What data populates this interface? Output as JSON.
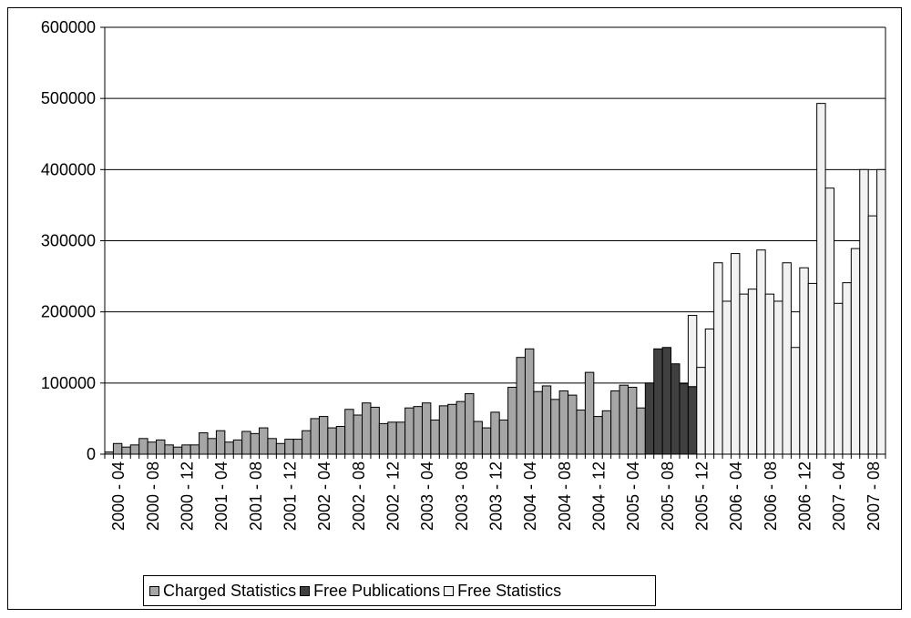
{
  "chart_data": {
    "type": "bar",
    "ylim": [
      0,
      600000
    ],
    "yticks": [
      0,
      100000,
      200000,
      300000,
      400000,
      500000,
      600000
    ],
    "grid": true,
    "legend_position": "bottom",
    "x_tick_labels": [
      "2000 - 04",
      "2000 - 08",
      "2000 - 12",
      "2001 - 04",
      "2001 - 08",
      "2001 - 12",
      "2002 - 04",
      "2002 - 08",
      "2002 - 12",
      "2003 - 04",
      "2003 - 08",
      "2003 - 12",
      "2004 - 04",
      "2004 - 08",
      "2004 - 12",
      "2005 - 04",
      "2005 - 08",
      "2005 - 12",
      "2006 - 04",
      "2006 - 08",
      "2006 - 12",
      "2007 - 04",
      "2007 - 08"
    ],
    "categories": [
      "2000-03",
      "2000-04",
      "2000-05",
      "2000-06",
      "2000-07",
      "2000-08",
      "2000-09",
      "2000-10",
      "2000-11",
      "2000-12",
      "2001-01",
      "2001-02",
      "2001-03",
      "2001-04",
      "2001-05",
      "2001-06",
      "2001-07",
      "2001-08",
      "2001-09",
      "2001-10",
      "2001-11",
      "2001-12",
      "2002-01",
      "2002-02",
      "2002-03",
      "2002-04",
      "2002-05",
      "2002-06",
      "2002-07",
      "2002-08",
      "2002-09",
      "2002-10",
      "2002-11",
      "2002-12",
      "2003-01",
      "2003-02",
      "2003-03",
      "2003-04",
      "2003-05",
      "2003-06",
      "2003-07",
      "2003-08",
      "2003-09",
      "2003-10",
      "2003-11",
      "2003-12",
      "2004-01",
      "2004-02",
      "2004-03",
      "2004-04",
      "2004-05",
      "2004-06",
      "2004-07",
      "2004-08",
      "2004-09",
      "2004-10",
      "2004-11",
      "2004-12",
      "2005-01",
      "2005-02",
      "2005-03",
      "2005-04",
      "2005-05",
      "2005-06",
      "2005-07",
      "2005-08",
      "2005-09",
      "2005-10",
      "2005-11",
      "2005-12",
      "2006-01",
      "2006-02",
      "2006-03",
      "2006-04",
      "2006-05",
      "2006-06",
      "2006-07",
      "2006-08",
      "2006-09",
      "2006-10",
      "2006-11",
      "2006-12",
      "2007-01",
      "2007-02",
      "2007-03",
      "2007-04",
      "2007-05",
      "2007-06",
      "2007-07",
      "2007-08",
      "2007-09"
    ],
    "series": [
      {
        "name": "Charged Statistics",
        "color": "#a6a6a6",
        "values": [
          3000,
          15000,
          10000,
          13000,
          22000,
          17000,
          20000,
          13000,
          10000,
          13000,
          13000,
          30000,
          22000,
          33000,
          17000,
          20000,
          32000,
          29000,
          37000,
          22000,
          15000,
          21000,
          21000,
          33000,
          50000,
          53000,
          37000,
          39000,
          63000,
          55000,
          72000,
          66000,
          43000,
          45000,
          45000,
          65000,
          67000,
          72000,
          48000,
          68000,
          70000,
          74000,
          85000,
          46000,
          37000,
          59000,
          48000,
          94000,
          136000,
          148000,
          88000,
          96000,
          77000,
          89000,
          83000,
          62000,
          115000,
          53000,
          61000,
          89000,
          97000,
          94000,
          65000,
          0,
          0,
          0,
          0,
          0,
          0,
          0,
          0,
          0,
          0,
          0,
          0,
          0,
          0,
          0,
          0,
          0,
          0,
          0,
          0,
          0,
          0,
          0,
          0,
          0,
          0,
          0,
          0
        ]
      },
      {
        "name": "Free Publications",
        "color": "#404040",
        "values": [
          0,
          0,
          0,
          0,
          0,
          0,
          0,
          0,
          0,
          0,
          0,
          0,
          0,
          0,
          0,
          0,
          0,
          0,
          0,
          0,
          0,
          0,
          0,
          0,
          0,
          0,
          0,
          0,
          0,
          0,
          0,
          0,
          0,
          0,
          0,
          0,
          0,
          0,
          0,
          0,
          0,
          0,
          0,
          0,
          0,
          0,
          0,
          0,
          0,
          0,
          0,
          0,
          0,
          0,
          0,
          0,
          0,
          0,
          0,
          0,
          0,
          0,
          0,
          100000,
          148000,
          150000,
          127000,
          99000,
          95000,
          0,
          0,
          0,
          0,
          0,
          0,
          0,
          0,
          0,
          0,
          0,
          0,
          0,
          0,
          0,
          0,
          0,
          0,
          0,
          0,
          0,
          0
        ]
      },
      {
        "name": "Free Statistics",
        "color": "#f2f2f2",
        "values": [
          0,
          0,
          0,
          0,
          0,
          0,
          0,
          0,
          0,
          0,
          0,
          0,
          0,
          0,
          0,
          0,
          0,
          0,
          0,
          0,
          0,
          0,
          0,
          0,
          0,
          0,
          0,
          0,
          0,
          0,
          0,
          0,
          0,
          0,
          0,
          0,
          0,
          0,
          0,
          0,
          0,
          0,
          0,
          0,
          0,
          0,
          0,
          0,
          0,
          0,
          0,
          0,
          0,
          0,
          0,
          0,
          0,
          0,
          0,
          0,
          0,
          0,
          0,
          0,
          0,
          0,
          0,
          0,
          100000,
          122000,
          176000,
          269000,
          215000,
          282000,
          225000,
          232000,
          287000,
          225000,
          215000,
          269000,
          150000,
          262000,
          240000,
          493000,
          374000,
          212000,
          241000,
          289000,
          400000,
          335000,
          400000
        ]
      }
    ]
  }
}
